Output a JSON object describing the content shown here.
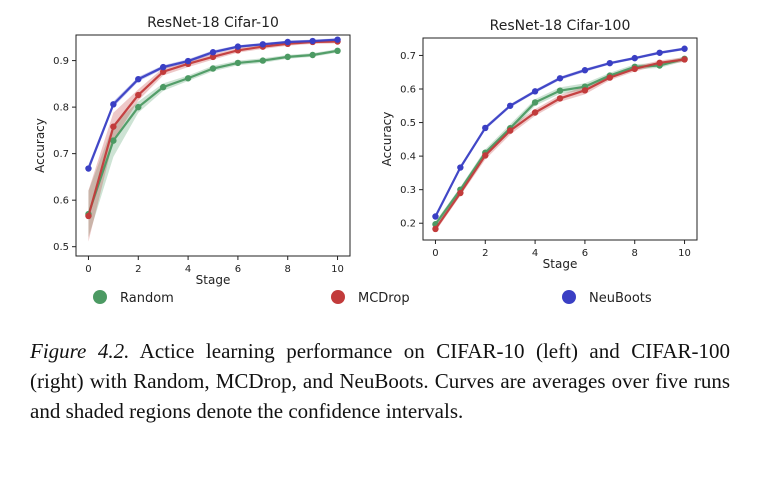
{
  "chart_data": [
    {
      "type": "line",
      "title": "ResNet-18 Cifar-10",
      "xlabel": "Stage",
      "ylabel": "Accuracy",
      "xlim": [
        -0.5,
        10.5
      ],
      "ylim": [
        0.48,
        0.955
      ],
      "xticks": [
        0,
        2,
        4,
        6,
        8,
        10
      ],
      "yticks": [
        0.5,
        0.6,
        0.7,
        0.8,
        0.9
      ],
      "ytick_labels": [
        "0.5",
        "0.6",
        "0.7",
        "0.8",
        "0.9"
      ],
      "grid": false,
      "x": [
        0,
        1,
        2,
        3,
        4,
        5,
        6,
        7,
        8,
        9,
        10
      ],
      "series": [
        {
          "name": "Random",
          "color": "#4c9a63",
          "values": [
            0.57,
            0.728,
            0.8,
            0.843,
            0.862,
            0.883,
            0.895,
            0.9,
            0.908,
            0.912,
            0.921
          ],
          "spread": [
            0.05,
            0.035,
            0.012,
            0.008,
            0.006,
            0.006,
            0.005,
            0.005,
            0.004,
            0.004,
            0.004
          ]
        },
        {
          "name": "MCDrop",
          "color": "#c23b3b",
          "values": [
            0.566,
            0.758,
            0.826,
            0.876,
            0.893,
            0.908,
            0.922,
            0.93,
            0.936,
            0.94,
            0.941
          ],
          "spread": [
            0.055,
            0.03,
            0.012,
            0.008,
            0.007,
            0.006,
            0.005,
            0.005,
            0.004,
            0.004,
            0.004
          ]
        },
        {
          "name": "NeuBoots",
          "color": "#3a3fc4",
          "values": [
            0.668,
            0.806,
            0.86,
            0.886,
            0.899,
            0.918,
            0.93,
            0.935,
            0.94,
            0.942,
            0.945
          ],
          "spread": [
            0.008,
            0.006,
            0.005,
            0.004,
            0.004,
            0.004,
            0.003,
            0.003,
            0.003,
            0.003,
            0.003
          ]
        }
      ]
    },
    {
      "type": "line",
      "title": "ResNet-18 Cifar-100",
      "xlabel": "Stage",
      "ylabel": "Accuracy",
      "xlim": [
        -0.5,
        10.5
      ],
      "ylim": [
        0.15,
        0.752
      ],
      "xticks": [
        0,
        2,
        4,
        6,
        8,
        10
      ],
      "yticks": [
        0.2,
        0.3,
        0.4,
        0.5,
        0.6,
        0.7
      ],
      "ytick_labels": [
        "0.2",
        "0.3",
        "0.4",
        "0.5",
        "0.6",
        "0.7"
      ],
      "grid": false,
      "x": [
        0,
        1,
        2,
        3,
        4,
        5,
        6,
        7,
        8,
        9,
        10
      ],
      "series": [
        {
          "name": "Random",
          "color": "#4c9a63",
          "values": [
            0.197,
            0.3,
            0.41,
            0.483,
            0.56,
            0.595,
            0.607,
            0.64,
            0.666,
            0.67,
            0.69
          ],
          "spread": [
            0.008,
            0.008,
            0.01,
            0.012,
            0.01,
            0.01,
            0.01,
            0.008,
            0.008,
            0.007,
            0.007
          ]
        },
        {
          "name": "MCDrop",
          "color": "#c23b3b",
          "values": [
            0.183,
            0.29,
            0.402,
            0.476,
            0.53,
            0.572,
            0.596,
            0.634,
            0.66,
            0.678,
            0.688
          ],
          "spread": [
            0.008,
            0.008,
            0.012,
            0.012,
            0.01,
            0.01,
            0.012,
            0.008,
            0.008,
            0.007,
            0.007
          ]
        },
        {
          "name": "NeuBoots",
          "color": "#3a3fc4",
          "values": [
            0.22,
            0.366,
            0.484,
            0.55,
            0.593,
            0.632,
            0.656,
            0.677,
            0.692,
            0.708,
            0.72
          ],
          "spread": [
            0.006,
            0.006,
            0.006,
            0.005,
            0.005,
            0.005,
            0.005,
            0.004,
            0.004,
            0.004,
            0.004
          ]
        }
      ]
    }
  ],
  "legend": [
    {
      "label": "Random",
      "color": "#4c9a63"
    },
    {
      "label": "MCDrop",
      "color": "#c23b3b"
    },
    {
      "label": "NeuBoots",
      "color": "#3a3fc4"
    }
  ],
  "caption": {
    "label": "Figure 4.2.",
    "text": "Actice learning performance on CIFAR-10 (left) and CIFAR-100 (right) with Random, MCDrop, and NeuBoots. Curves are averages over five runs and shaded regions denote the confidence intervals."
  }
}
